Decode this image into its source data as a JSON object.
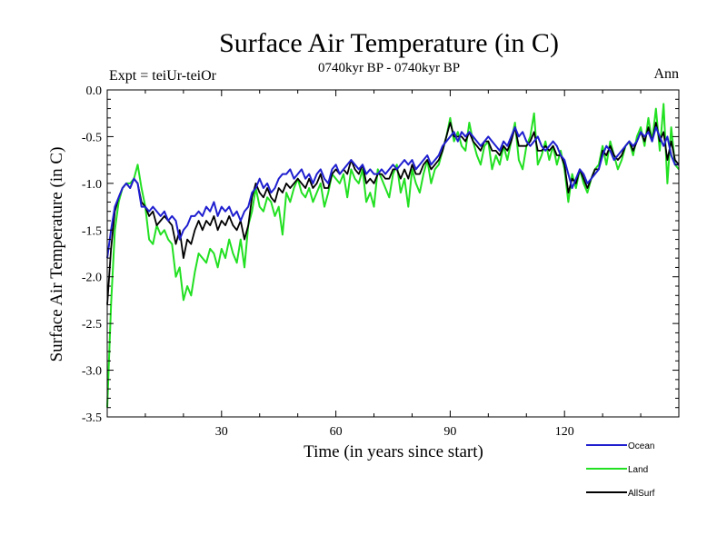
{
  "chart_data": {
    "type": "line",
    "title": "Surface Air Temperature (in C)",
    "subtitle": "0740kyr BP - 0740kyr BP",
    "experiment_label": "Expt = teiUr-teiOr",
    "period_label": "Ann",
    "xlabel": "Time (in years since start)",
    "ylabel": "Surface Air Temperature (in C)",
    "xlim": [
      0,
      150
    ],
    "ylim": [
      -3.5,
      0.0
    ],
    "x_ticks": [
      30,
      60,
      90,
      120
    ],
    "y_ticks": [
      0.0,
      -0.5,
      -1.0,
      -1.5,
      -2.0,
      -2.5,
      -3.0,
      -3.5
    ],
    "x_tick_labels": [
      "30",
      "60",
      "90",
      "120"
    ],
    "y_tick_labels": [
      "0.0",
      "-0.5",
      "-1.0",
      "-1.5",
      "-2.0",
      "-2.5",
      "-3.0",
      "-3.5"
    ],
    "grid": false,
    "legend_position": "bottom-right",
    "series": [
      {
        "name": "Ocean",
        "color": "#1f1fd0",
        "x": [
          0,
          1,
          2,
          3,
          4,
          5,
          6,
          7,
          8,
          9,
          10,
          11,
          12,
          13,
          14,
          15,
          16,
          17,
          18,
          19,
          20,
          21,
          22,
          23,
          24,
          25,
          26,
          27,
          28,
          29,
          30,
          31,
          32,
          33,
          34,
          35,
          36,
          37,
          38,
          39,
          40,
          41,
          42,
          43,
          44,
          45,
          46,
          47,
          48,
          49,
          50,
          51,
          52,
          53,
          54,
          55,
          56,
          57,
          58,
          59,
          60,
          61,
          62,
          63,
          64,
          65,
          66,
          67,
          68,
          69,
          70,
          71,
          72,
          73,
          74,
          75,
          76,
          77,
          78,
          79,
          80,
          81,
          82,
          83,
          84,
          85,
          86,
          87,
          88,
          89,
          90,
          91,
          92,
          93,
          94,
          95,
          96,
          97,
          98,
          99,
          100,
          101,
          102,
          103,
          104,
          105,
          106,
          107,
          108,
          109,
          110,
          111,
          112,
          113,
          114,
          115,
          116,
          117,
          118,
          119,
          120,
          121,
          122,
          123,
          124,
          125,
          126,
          127,
          128,
          129,
          130,
          131,
          132,
          133,
          134,
          135,
          136,
          137,
          138,
          139,
          140,
          141,
          142,
          143,
          144,
          145,
          146,
          147,
          148,
          149,
          150
        ],
        "values": [
          -1.8,
          -1.5,
          -1.25,
          -1.15,
          -1.05,
          -1.0,
          -1.05,
          -0.95,
          -1.0,
          -1.25,
          -1.25,
          -1.3,
          -1.25,
          -1.3,
          -1.35,
          -1.3,
          -1.4,
          -1.35,
          -1.4,
          -1.6,
          -1.5,
          -1.45,
          -1.35,
          -1.35,
          -1.3,
          -1.35,
          -1.25,
          -1.3,
          -1.2,
          -1.35,
          -1.25,
          -1.3,
          -1.25,
          -1.35,
          -1.3,
          -1.4,
          -1.3,
          -1.25,
          -1.1,
          -1.05,
          -0.95,
          -1.05,
          -1.0,
          -1.1,
          -1.05,
          -0.95,
          -0.9,
          -0.9,
          -0.85,
          -0.95,
          -0.9,
          -0.85,
          -0.95,
          -0.9,
          -1.0,
          -0.9,
          -0.85,
          -0.95,
          -1.0,
          -0.85,
          -0.8,
          -0.9,
          -0.85,
          -0.8,
          -0.75,
          -0.8,
          -0.85,
          -0.8,
          -0.9,
          -0.85,
          -0.9,
          -0.9,
          -0.85,
          -0.9,
          -0.85,
          -0.8,
          -0.85,
          -0.8,
          -0.75,
          -0.8,
          -0.75,
          -0.85,
          -0.8,
          -0.75,
          -0.7,
          -0.8,
          -0.75,
          -0.7,
          -0.6,
          -0.55,
          -0.5,
          -0.45,
          -0.55,
          -0.45,
          -0.5,
          -0.45,
          -0.5,
          -0.55,
          -0.6,
          -0.55,
          -0.5,
          -0.55,
          -0.6,
          -0.65,
          -0.55,
          -0.6,
          -0.5,
          -0.4,
          -0.5,
          -0.45,
          -0.55,
          -0.6,
          -0.55,
          -0.5,
          -0.6,
          -0.65,
          -0.6,
          -0.55,
          -0.6,
          -0.7,
          -0.75,
          -0.9,
          -1.05,
          -0.95,
          -0.85,
          -0.9,
          -1.0,
          -0.95,
          -0.9,
          -0.85,
          -0.7,
          -0.6,
          -0.65,
          -0.75,
          -0.7,
          -0.65,
          -0.6,
          -0.55,
          -0.6,
          -0.55,
          -0.45,
          -0.5,
          -0.45,
          -0.55,
          -0.4,
          -0.5,
          -0.6,
          -0.5,
          -0.7,
          -0.8,
          -0.8
        ]
      },
      {
        "name": "Land",
        "color": "#22e022",
        "x": [
          0,
          1,
          2,
          3,
          4,
          5,
          6,
          7,
          8,
          9,
          10,
          11,
          12,
          13,
          14,
          15,
          16,
          17,
          18,
          19,
          20,
          21,
          22,
          23,
          24,
          25,
          26,
          27,
          28,
          29,
          30,
          31,
          32,
          33,
          34,
          35,
          36,
          37,
          38,
          39,
          40,
          41,
          42,
          43,
          44,
          45,
          46,
          47,
          48,
          49,
          50,
          51,
          52,
          53,
          54,
          55,
          56,
          57,
          58,
          59,
          60,
          61,
          62,
          63,
          64,
          65,
          66,
          67,
          68,
          69,
          70,
          71,
          72,
          73,
          74,
          75,
          76,
          77,
          78,
          79,
          80,
          81,
          82,
          83,
          84,
          85,
          86,
          87,
          88,
          89,
          90,
          91,
          92,
          93,
          94,
          95,
          96,
          97,
          98,
          99,
          100,
          101,
          102,
          103,
          104,
          105,
          106,
          107,
          108,
          109,
          110,
          111,
          112,
          113,
          114,
          115,
          116,
          117,
          118,
          119,
          120,
          121,
          122,
          123,
          124,
          125,
          126,
          127,
          128,
          129,
          130,
          131,
          132,
          133,
          134,
          135,
          136,
          137,
          138,
          139,
          140,
          141,
          142,
          143,
          144,
          145,
          146,
          147,
          148,
          149,
          150
        ],
        "values": [
          -3.4,
          -2.3,
          -1.5,
          -1.2,
          -1.05,
          -1.0,
          -1.0,
          -0.95,
          -0.8,
          -1.05,
          -1.25,
          -1.6,
          -1.65,
          -1.45,
          -1.55,
          -1.5,
          -1.6,
          -1.65,
          -2.0,
          -1.9,
          -2.25,
          -2.1,
          -2.2,
          -1.95,
          -1.75,
          -1.8,
          -1.85,
          -1.7,
          -1.75,
          -1.9,
          -1.7,
          -1.8,
          -1.6,
          -1.75,
          -1.85,
          -1.6,
          -1.9,
          -1.45,
          -1.3,
          -1.05,
          -1.25,
          -1.3,
          -1.15,
          -1.2,
          -1.35,
          -1.25,
          -1.55,
          -1.1,
          -1.2,
          -1.05,
          -0.95,
          -1.1,
          -1.15,
          -1.05,
          -1.2,
          -1.1,
          -1.0,
          -1.25,
          -1.1,
          -0.9,
          -0.95,
          -1.0,
          -0.9,
          -1.15,
          -0.85,
          -0.95,
          -1.0,
          -0.85,
          -1.2,
          -1.1,
          -1.25,
          -0.85,
          -0.95,
          -1.05,
          -1.15,
          -0.9,
          -0.8,
          -1.1,
          -0.95,
          -1.25,
          -0.85,
          -1.0,
          -1.1,
          -0.9,
          -0.75,
          -1.0,
          -0.85,
          -0.8,
          -0.65,
          -0.5,
          -0.3,
          -0.55,
          -0.45,
          -0.6,
          -0.65,
          -0.35,
          -0.55,
          -0.7,
          -0.8,
          -0.6,
          -0.55,
          -0.85,
          -0.7,
          -0.8,
          -0.6,
          -0.75,
          -0.55,
          -0.35,
          -0.75,
          -0.85,
          -0.6,
          -0.5,
          -0.25,
          -0.8,
          -0.7,
          -0.55,
          -0.75,
          -0.6,
          -0.8,
          -0.65,
          -0.85,
          -1.2,
          -0.9,
          -1.05,
          -0.85,
          -1.0,
          -1.1,
          -0.95,
          -0.85,
          -0.8,
          -0.6,
          -0.8,
          -0.55,
          -0.7,
          -0.85,
          -0.75,
          -0.6,
          -0.55,
          -0.7,
          -0.5,
          -0.4,
          -0.6,
          -0.3,
          -0.55,
          -0.2,
          -0.65,
          -0.15,
          -1.0,
          -0.4,
          -0.8,
          -0.85
        ]
      },
      {
        "name": "AllSurf",
        "color": "#000000",
        "x": [
          0,
          1,
          2,
          3,
          4,
          5,
          6,
          7,
          8,
          9,
          10,
          11,
          12,
          13,
          14,
          15,
          16,
          17,
          18,
          19,
          20,
          21,
          22,
          23,
          24,
          25,
          26,
          27,
          28,
          29,
          30,
          31,
          32,
          33,
          34,
          35,
          36,
          37,
          38,
          39,
          40,
          41,
          42,
          43,
          44,
          45,
          46,
          47,
          48,
          49,
          50,
          51,
          52,
          53,
          54,
          55,
          56,
          57,
          58,
          59,
          60,
          61,
          62,
          63,
          64,
          65,
          66,
          67,
          68,
          69,
          70,
          71,
          72,
          73,
          74,
          75,
          76,
          77,
          78,
          79,
          80,
          81,
          82,
          83,
          84,
          85,
          86,
          87,
          88,
          89,
          90,
          91,
          92,
          93,
          94,
          95,
          96,
          97,
          98,
          99,
          100,
          101,
          102,
          103,
          104,
          105,
          106,
          107,
          108,
          109,
          110,
          111,
          112,
          113,
          114,
          115,
          116,
          117,
          118,
          119,
          120,
          121,
          122,
          123,
          124,
          125,
          126,
          127,
          128,
          129,
          130,
          131,
          132,
          133,
          134,
          135,
          136,
          137,
          138,
          139,
          140,
          141,
          142,
          143,
          144,
          145,
          146,
          147,
          148,
          149,
          150
        ],
        "values": [
          -2.3,
          -1.7,
          -1.3,
          -1.15,
          -1.05,
          -1.0,
          -1.05,
          -0.95,
          -1.0,
          -1.2,
          -1.25,
          -1.35,
          -1.3,
          -1.45,
          -1.4,
          -1.35,
          -1.4,
          -1.45,
          -1.65,
          -1.5,
          -1.8,
          -1.6,
          -1.65,
          -1.5,
          -1.4,
          -1.5,
          -1.4,
          -1.45,
          -1.35,
          -1.5,
          -1.4,
          -1.45,
          -1.35,
          -1.45,
          -1.5,
          -1.4,
          -1.6,
          -1.45,
          -1.15,
          -1.0,
          -1.1,
          -1.15,
          -1.05,
          -1.15,
          -1.2,
          -1.05,
          -1.1,
          -1.0,
          -1.05,
          -1.0,
          -0.95,
          -1.0,
          -1.05,
          -0.95,
          -1.05,
          -1.0,
          -0.9,
          -1.05,
          -1.05,
          -0.9,
          -0.85,
          -0.9,
          -0.85,
          -0.9,
          -0.75,
          -0.85,
          -0.9,
          -0.8,
          -1.0,
          -0.95,
          -1.0,
          -0.9,
          -0.9,
          -0.95,
          -0.95,
          -0.85,
          -0.85,
          -0.95,
          -0.85,
          -0.95,
          -0.8,
          -0.9,
          -0.9,
          -0.8,
          -0.75,
          -0.85,
          -0.8,
          -0.75,
          -0.65,
          -0.5,
          -0.35,
          -0.5,
          -0.5,
          -0.5,
          -0.55,
          -0.45,
          -0.55,
          -0.6,
          -0.65,
          -0.55,
          -0.55,
          -0.65,
          -0.65,
          -0.7,
          -0.6,
          -0.65,
          -0.55,
          -0.4,
          -0.6,
          -0.6,
          -0.6,
          -0.55,
          -0.45,
          -0.65,
          -0.65,
          -0.6,
          -0.65,
          -0.6,
          -0.7,
          -0.7,
          -0.8,
          -1.1,
          -0.95,
          -1.0,
          -0.85,
          -0.95,
          -1.05,
          -0.95,
          -0.85,
          -0.85,
          -0.65,
          -0.7,
          -0.6,
          -0.7,
          -0.75,
          -0.7,
          -0.6,
          -0.55,
          -0.65,
          -0.55,
          -0.45,
          -0.55,
          -0.4,
          -0.55,
          -0.35,
          -0.55,
          -0.45,
          -0.75,
          -0.55,
          -0.75,
          -0.8
        ]
      }
    ]
  }
}
